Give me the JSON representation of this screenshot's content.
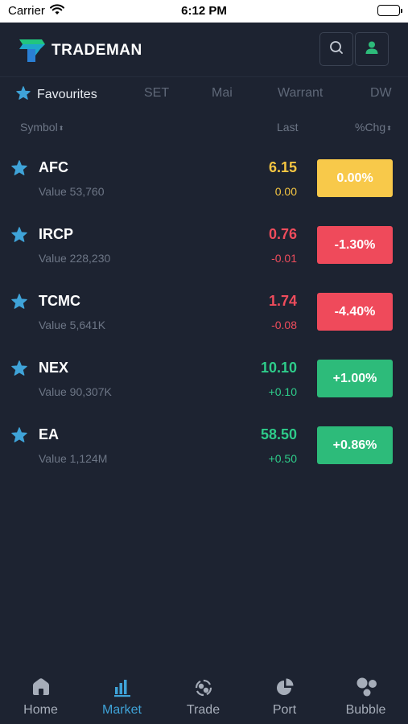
{
  "status_bar": {
    "carrier": "Carrier",
    "time": "6:12 PM"
  },
  "header": {
    "brand": "TRADEMAN"
  },
  "tabs": [
    {
      "label": "Favourites",
      "active": true
    },
    {
      "label": "SET",
      "active": false
    },
    {
      "label": "Mai",
      "active": false
    },
    {
      "label": "Warrant",
      "active": false
    },
    {
      "label": "DW",
      "active": false
    }
  ],
  "columns": {
    "symbol": "Symbol",
    "last": "Last",
    "chg": "%Chg"
  },
  "rows": [
    {
      "symbol": "AFC",
      "value": "Value 53,760",
      "last": "6.15",
      "change": "0.00",
      "pct": "0.00%",
      "color": "#f4c542",
      "pill_color": "#f8c94a"
    },
    {
      "symbol": "IRCP",
      "value": "Value 228,230",
      "last": "0.76",
      "change": "-0.01",
      "pct": "-1.30%",
      "color": "#ef4c5c",
      "pill_color": "#ef4a5b"
    },
    {
      "symbol": "TCMC",
      "value": "Value 5,641K",
      "last": "1.74",
      "change": "-0.08",
      "pct": "-4.40%",
      "color": "#ef4c5c",
      "pill_color": "#ef4a5b"
    },
    {
      "symbol": "NEX",
      "value": "Value 90,307K",
      "last": "10.10",
      "change": "+0.10",
      "pct": "+1.00%",
      "color": "#2ecc8a",
      "pill_color": "#2dbb7a"
    },
    {
      "symbol": "EA",
      "value": "Value 1,124M",
      "last": "58.50",
      "change": "+0.50",
      "pct": "+0.86%",
      "color": "#2ecc8a",
      "pill_color": "#2dbb7a"
    }
  ],
  "nav": [
    {
      "label": "Home",
      "icon": "home-icon",
      "active": false
    },
    {
      "label": "Market",
      "icon": "market-icon",
      "active": true
    },
    {
      "label": "Trade",
      "icon": "trade-icon",
      "active": false
    },
    {
      "label": "Port",
      "icon": "port-icon",
      "active": false
    },
    {
      "label": "Bubble",
      "icon": "bubble-icon",
      "active": false
    }
  ],
  "colors": {
    "background": "#1d2331",
    "accent": "#3fa3d8",
    "star": "#3fa3d8",
    "positive": "#2dbb7a",
    "negative": "#ef4a5b",
    "unchanged": "#f8c94a"
  }
}
